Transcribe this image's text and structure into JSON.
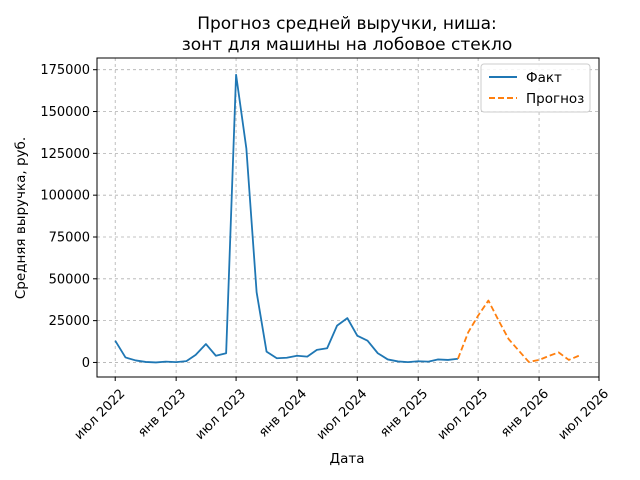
{
  "chart_data": {
    "type": "line",
    "title": [
      "Прогноз средней выручки, ниша:",
      "зонт для машины на лобовое стекло"
    ],
    "xlabel": "Дата",
    "ylabel": "Средняя выручка, руб.",
    "xlim": [
      "2022-05-07",
      "2026-07-01"
    ],
    "ylim": [
      -8700,
      182000
    ],
    "x_ticks": [
      {
        "date": "2022-07-01",
        "label": "июл 2022"
      },
      {
        "date": "2023-01-01",
        "label": "янв 2023"
      },
      {
        "date": "2023-07-01",
        "label": "июл 2023"
      },
      {
        "date": "2024-01-01",
        "label": "янв 2024"
      },
      {
        "date": "2024-07-01",
        "label": "июл 2024"
      },
      {
        "date": "2025-01-01",
        "label": "янв 2025"
      },
      {
        "date": "2025-07-01",
        "label": "июл 2025"
      },
      {
        "date": "2026-01-01",
        "label": "янв 2026"
      },
      {
        "date": "2026-07-01",
        "label": "июл 2026"
      }
    ],
    "y_ticks": [
      0,
      25000,
      50000,
      75000,
      100000,
      125000,
      150000,
      175000
    ],
    "grid": true,
    "legend_position": "top-right",
    "series": [
      {
        "name": "Факт",
        "color": "#1f77b4",
        "style": "solid",
        "points": [
          {
            "x": "2022-07-01",
            "y": 13000
          },
          {
            "x": "2022-08-01",
            "y": 3000
          },
          {
            "x": "2022-09-01",
            "y": 1200
          },
          {
            "x": "2022-10-01",
            "y": 300
          },
          {
            "x": "2022-11-01",
            "y": 0
          },
          {
            "x": "2022-12-01",
            "y": 500
          },
          {
            "x": "2023-01-01",
            "y": 200
          },
          {
            "x": "2023-02-01",
            "y": 800
          },
          {
            "x": "2023-03-01",
            "y": 4500
          },
          {
            "x": "2023-04-01",
            "y": 11000
          },
          {
            "x": "2023-05-01",
            "y": 4000
          },
          {
            "x": "2023-06-01",
            "y": 5500
          },
          {
            "x": "2023-07-01",
            "y": 172000
          },
          {
            "x": "2023-08-01",
            "y": 128000
          },
          {
            "x": "2023-09-01",
            "y": 42000
          },
          {
            "x": "2023-10-01",
            "y": 6500
          },
          {
            "x": "2023-11-01",
            "y": 2500
          },
          {
            "x": "2023-12-01",
            "y": 2800
          },
          {
            "x": "2024-01-01",
            "y": 4000
          },
          {
            "x": "2024-02-01",
            "y": 3500
          },
          {
            "x": "2024-03-01",
            "y": 7500
          },
          {
            "x": "2024-04-01",
            "y": 8500
          },
          {
            "x": "2024-05-01",
            "y": 22000
          },
          {
            "x": "2024-06-01",
            "y": 26500
          },
          {
            "x": "2024-07-01",
            "y": 16000
          },
          {
            "x": "2024-08-01",
            "y": 13000
          },
          {
            "x": "2024-09-01",
            "y": 5500
          },
          {
            "x": "2024-10-01",
            "y": 1800
          },
          {
            "x": "2024-11-01",
            "y": 600
          },
          {
            "x": "2024-12-01",
            "y": 200
          },
          {
            "x": "2025-01-01",
            "y": 700
          },
          {
            "x": "2025-02-01",
            "y": 500
          },
          {
            "x": "2025-03-01",
            "y": 1800
          },
          {
            "x": "2025-04-01",
            "y": 1500
          },
          {
            "x": "2025-05-01",
            "y": 2200
          }
        ]
      },
      {
        "name": "Прогноз",
        "color": "#ff7f0e",
        "style": "dashed",
        "points": [
          {
            "x": "2025-05-01",
            "y": 2200
          },
          {
            "x": "2025-06-01",
            "y": 18000
          },
          {
            "x": "2025-07-01",
            "y": 28000
          },
          {
            "x": "2025-08-01",
            "y": 37000
          },
          {
            "x": "2025-09-01",
            "y": 25000
          },
          {
            "x": "2025-10-01",
            "y": 14000
          },
          {
            "x": "2025-11-01",
            "y": 7000
          },
          {
            "x": "2025-12-01",
            "y": 300
          },
          {
            "x": "2026-01-01",
            "y": 1500
          },
          {
            "x": "2026-02-01",
            "y": 4000
          },
          {
            "x": "2026-03-01",
            "y": 6000
          },
          {
            "x": "2026-04-01",
            "y": 1500
          },
          {
            "x": "2026-05-01",
            "y": 4000
          }
        ]
      }
    ]
  }
}
